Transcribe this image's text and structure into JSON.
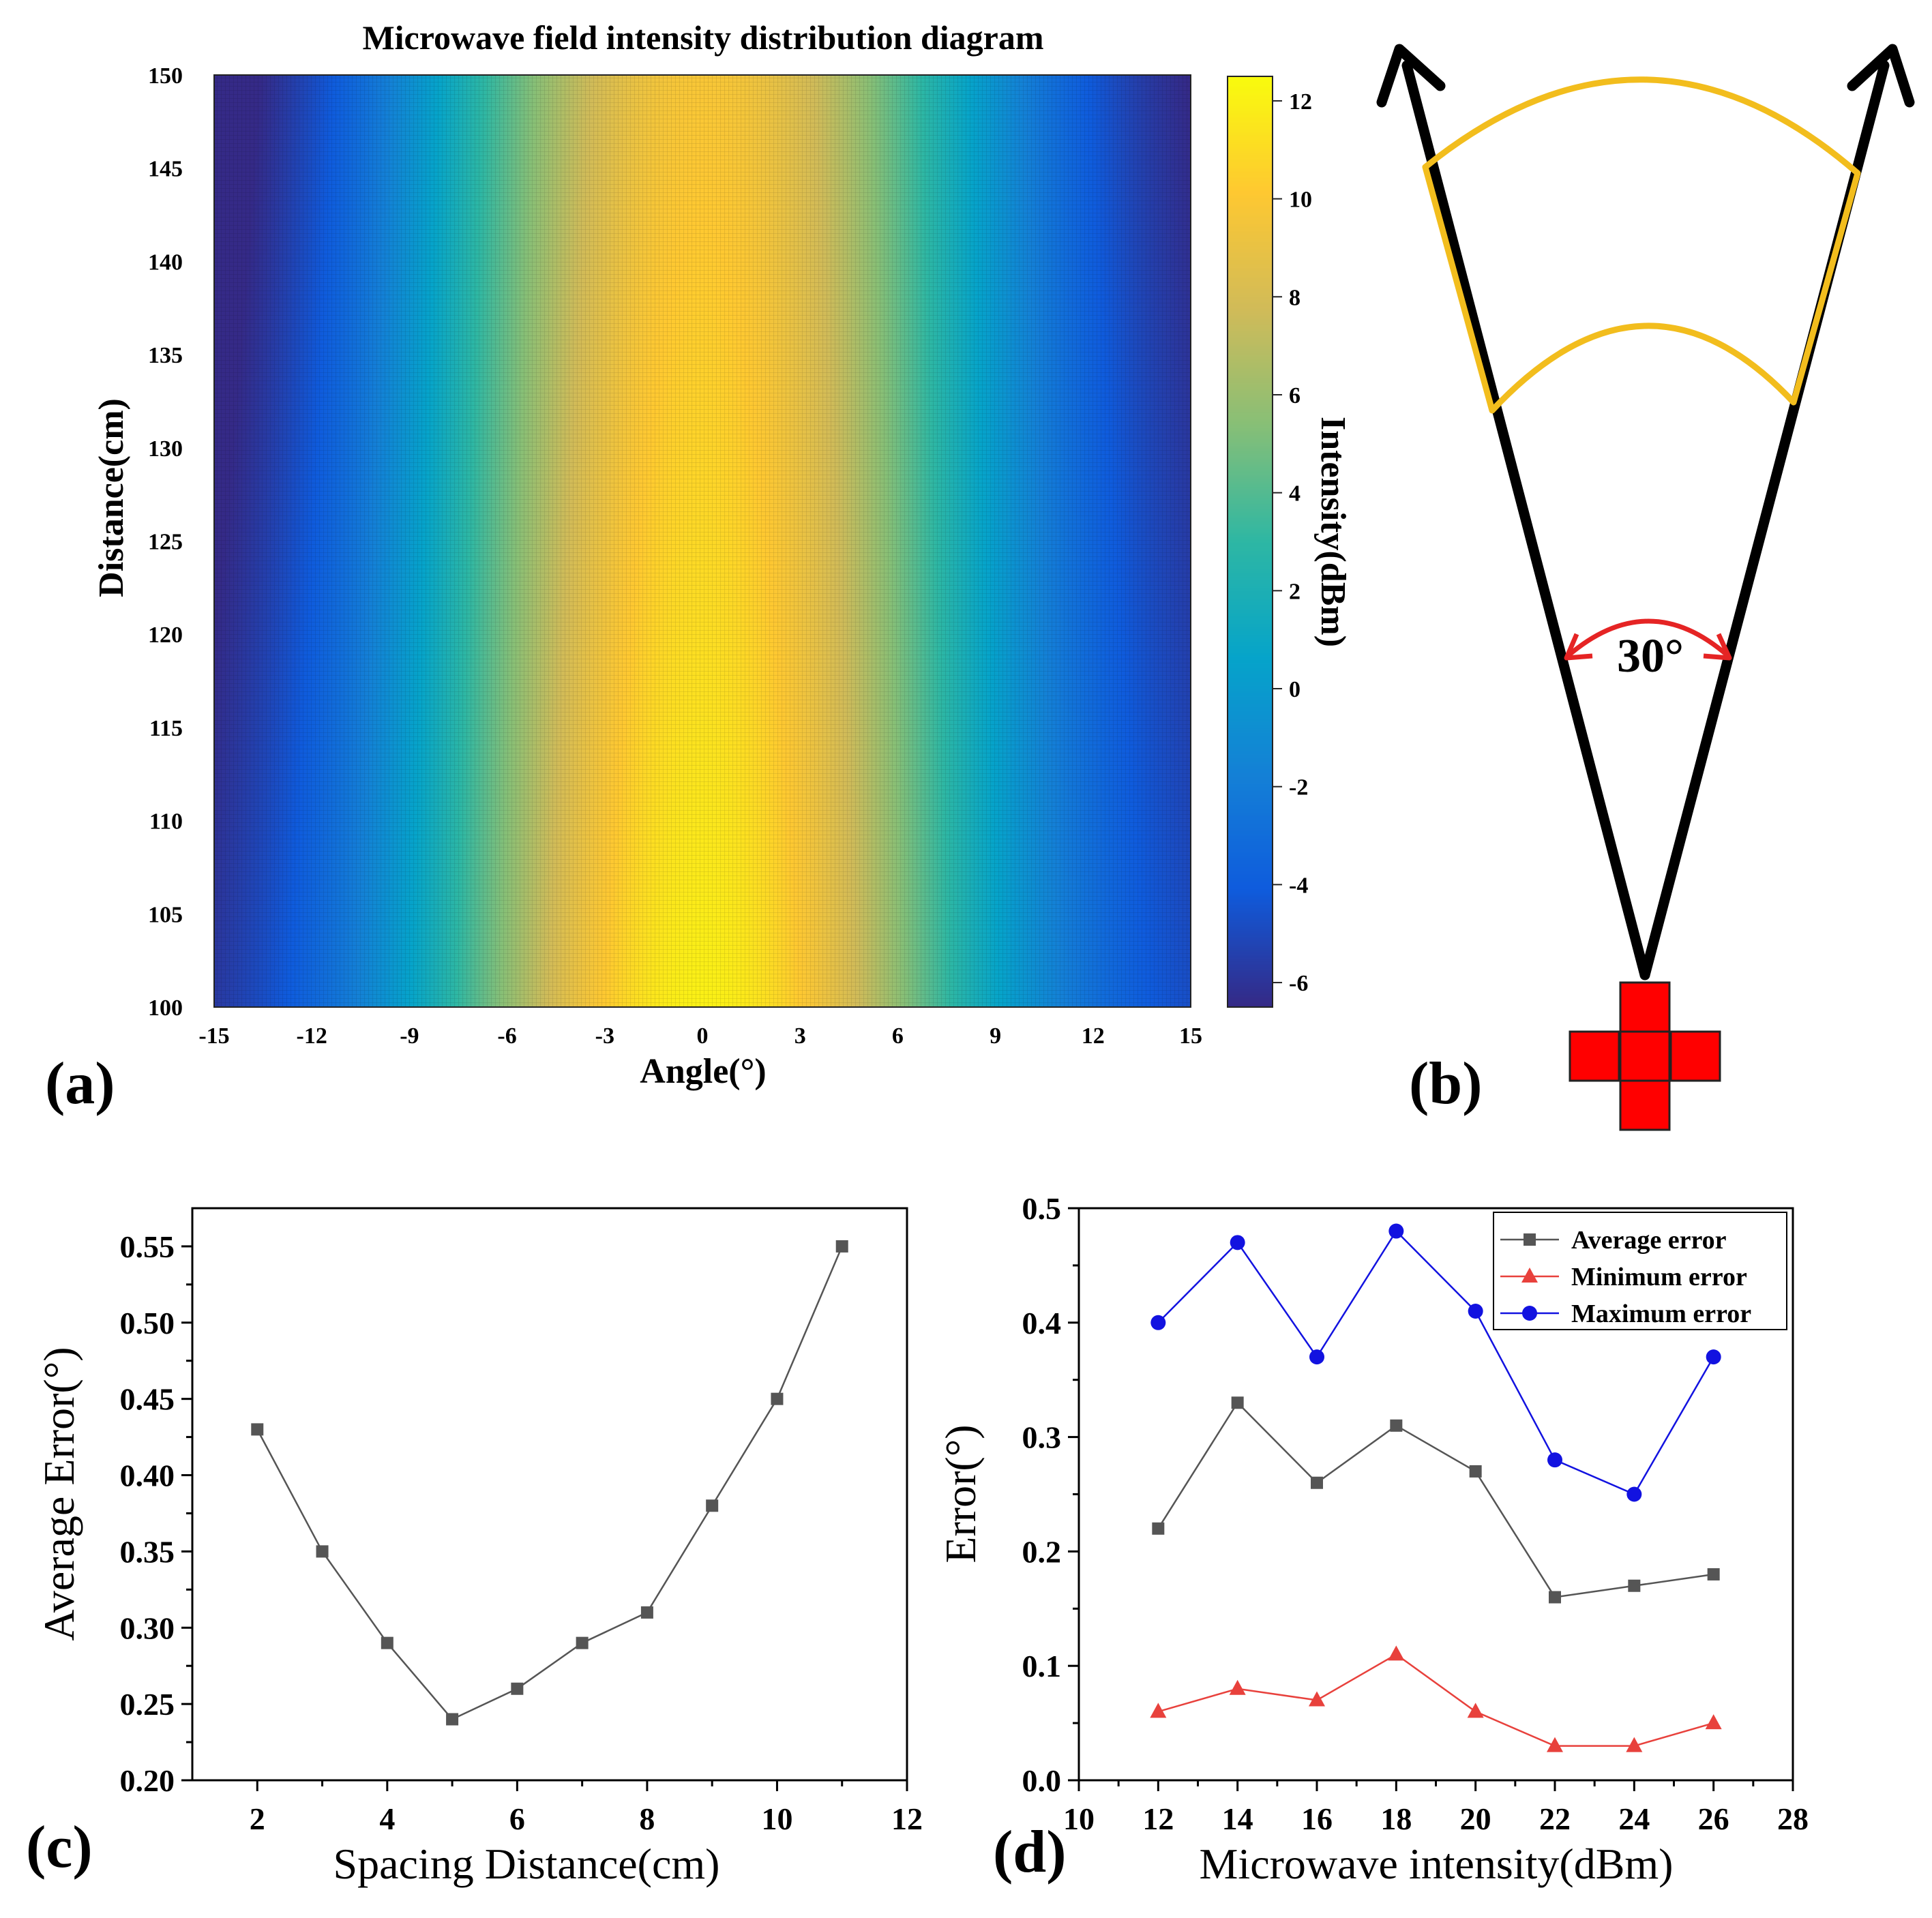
{
  "chart_data": [
    {
      "panel": "a",
      "type": "heatmap",
      "panel_label": "(a)",
      "title": "Microwave field intensity distribution diagram",
      "xlabel": "Angle(°)",
      "ylabel": "Distance(cm)",
      "colorbar_label": "Intensity(dBm)",
      "xlim": [
        -15,
        15
      ],
      "ylim": [
        100,
        150
      ],
      "xticks": [
        -15,
        -12,
        -9,
        -6,
        -3,
        0,
        3,
        6,
        9,
        12,
        15
      ],
      "yticks": [
        100,
        105,
        110,
        115,
        120,
        125,
        130,
        135,
        140,
        145,
        150
      ],
      "clim": [
        -6.5,
        12.5
      ],
      "colorbar_ticks": [
        -6,
        -4,
        -2,
        0,
        2,
        4,
        6,
        8,
        10,
        12
      ],
      "colormap": [
        "#352a87",
        "#0f5cdd",
        "#1481d6",
        "#06a4ca",
        "#2eb7a4",
        "#87bf77",
        "#d1bb59",
        "#fec832",
        "#f9fb0e"
      ],
      "peak_angle": 0,
      "intensity_max": 12,
      "intensity_min": -6
    },
    {
      "panel": "b",
      "type": "diagram",
      "panel_label": "(b)",
      "angle_label": "30°"
    },
    {
      "panel": "c",
      "type": "line",
      "panel_label": "(c)",
      "xlabel": "Spacing Distance(cm)",
      "ylabel": "Average Error(°)",
      "xlim": [
        1,
        12
      ],
      "ylim": [
        0.2,
        0.575
      ],
      "xticks": [
        2,
        4,
        6,
        8,
        10,
        12
      ],
      "yticks": [
        0.2,
        0.25,
        0.3,
        0.35,
        0.4,
        0.45,
        0.5,
        0.55
      ],
      "ytick_labels": [
        "0.20",
        "0.25",
        "0.30",
        "0.35",
        "0.40",
        "0.45",
        "0.50",
        "0.55"
      ],
      "x": [
        2,
        3,
        4,
        5,
        6,
        7,
        8,
        9,
        10,
        11
      ],
      "series": [
        {
          "name": "Average error",
          "color": "#555555",
          "marker": "square",
          "values": [
            0.43,
            0.35,
            0.29,
            0.24,
            0.26,
            0.29,
            0.31,
            0.38,
            0.45,
            0.55
          ]
        }
      ]
    },
    {
      "panel": "d",
      "type": "line",
      "panel_label": "(d)",
      "xlabel": "Microwave intensity(dBm)",
      "ylabel": "Error(°)",
      "xlim": [
        10,
        28
      ],
      "ylim": [
        0,
        0.5
      ],
      "xticks": [
        10,
        12,
        14,
        16,
        18,
        20,
        22,
        24,
        26,
        28
      ],
      "yticks": [
        0.0,
        0.1,
        0.2,
        0.3,
        0.4,
        0.5
      ],
      "ytick_labels": [
        "0.0",
        "0.1",
        "0.2",
        "0.3",
        "0.4",
        "0.5"
      ],
      "x": [
        12,
        14,
        16,
        18,
        20,
        22,
        24,
        26
      ],
      "legend_position": "top-right",
      "series": [
        {
          "name": "Average error",
          "color": "#555555",
          "marker": "square",
          "values": [
            0.22,
            0.33,
            0.26,
            0.31,
            0.27,
            0.16,
            0.17,
            0.18
          ]
        },
        {
          "name": "Minimum error",
          "color": "#e8413c",
          "marker": "triangle",
          "values": [
            0.06,
            0.08,
            0.07,
            0.11,
            0.06,
            0.03,
            0.03,
            0.05
          ]
        },
        {
          "name": "Maximum error",
          "color": "#1212e0",
          "marker": "circle",
          "values": [
            0.4,
            0.47,
            0.37,
            0.48,
            0.41,
            0.28,
            0.25,
            0.37
          ]
        }
      ]
    }
  ]
}
